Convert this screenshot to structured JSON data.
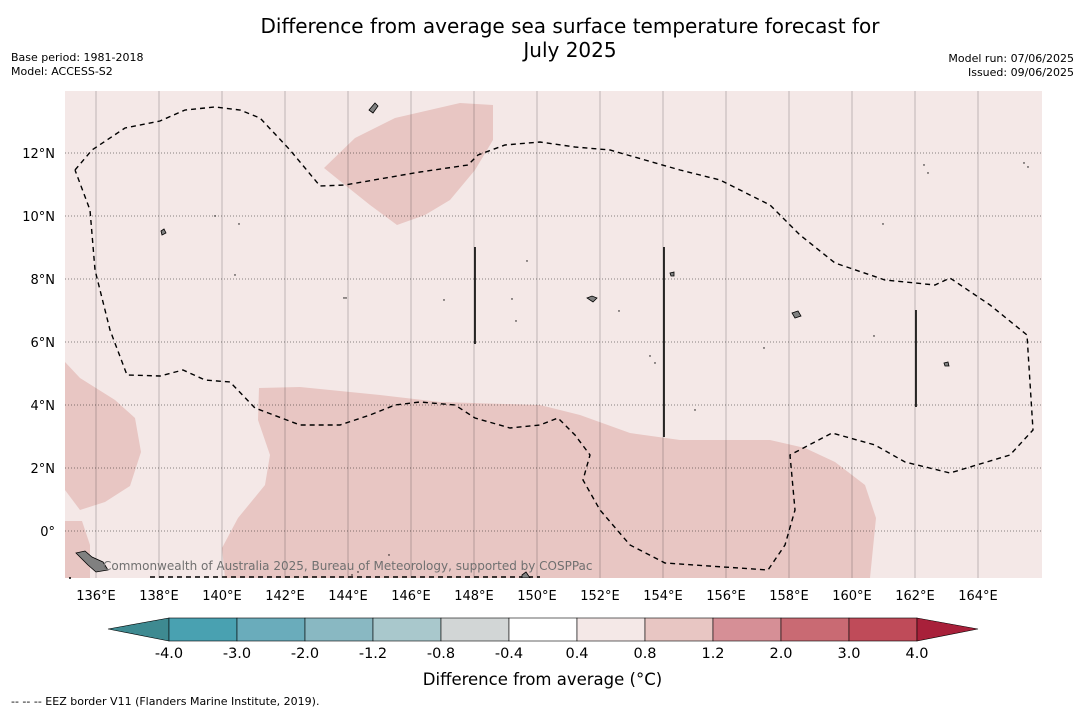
{
  "title_line1": "Difference from average sea surface temperature forecast for",
  "title_line2": "July 2025",
  "base_period": "Base period: 1981-2018",
  "model": "Model: ACCESS-S2",
  "model_run": "Model run: 07/06/2025",
  "issued": "Issued: 09/06/2025",
  "attribution": "Commonwealth of Australia 2025, Bureau of Meteorology, supported by COSPPac",
  "footnote": "--  --  -- EEZ border V11 (Flanders Marine Institute, 2019).",
  "y_ticks": [
    "12°N",
    "10°N",
    "8°N",
    "6°N",
    "4°N",
    "2°N",
    "0°"
  ],
  "x_ticks": [
    "136°E",
    "138°E",
    "140°E",
    "142°E",
    "144°E",
    "146°E",
    "148°E",
    "150°E",
    "152°E",
    "154°E",
    "156°E",
    "158°E",
    "160°E",
    "162°E",
    "164°E"
  ],
  "colorbar": {
    "label": "Difference from average (°C)",
    "ticks": [
      "-4.0",
      "-3.0",
      "-2.0",
      "-1.2",
      "-0.8",
      "-0.4",
      "0.4",
      "0.8",
      "1.2",
      "2.0",
      "3.0",
      "4.0"
    ],
    "colors": [
      "#49a1b1",
      "#6aacbb",
      "#89b8c2",
      "#a9c8cc",
      "#d2d6d6",
      "#ffffff",
      "#f4e8e7",
      "#e8c6c3",
      "#d68f96",
      "#c96a73",
      "#bf4b59"
    ],
    "under_color": "#3e8a91",
    "over_color": "#a8203a"
  },
  "map_colors": {
    "background": "#f4e8e7",
    "warm_patch": "#e8c6c3",
    "land": "#808080"
  }
}
